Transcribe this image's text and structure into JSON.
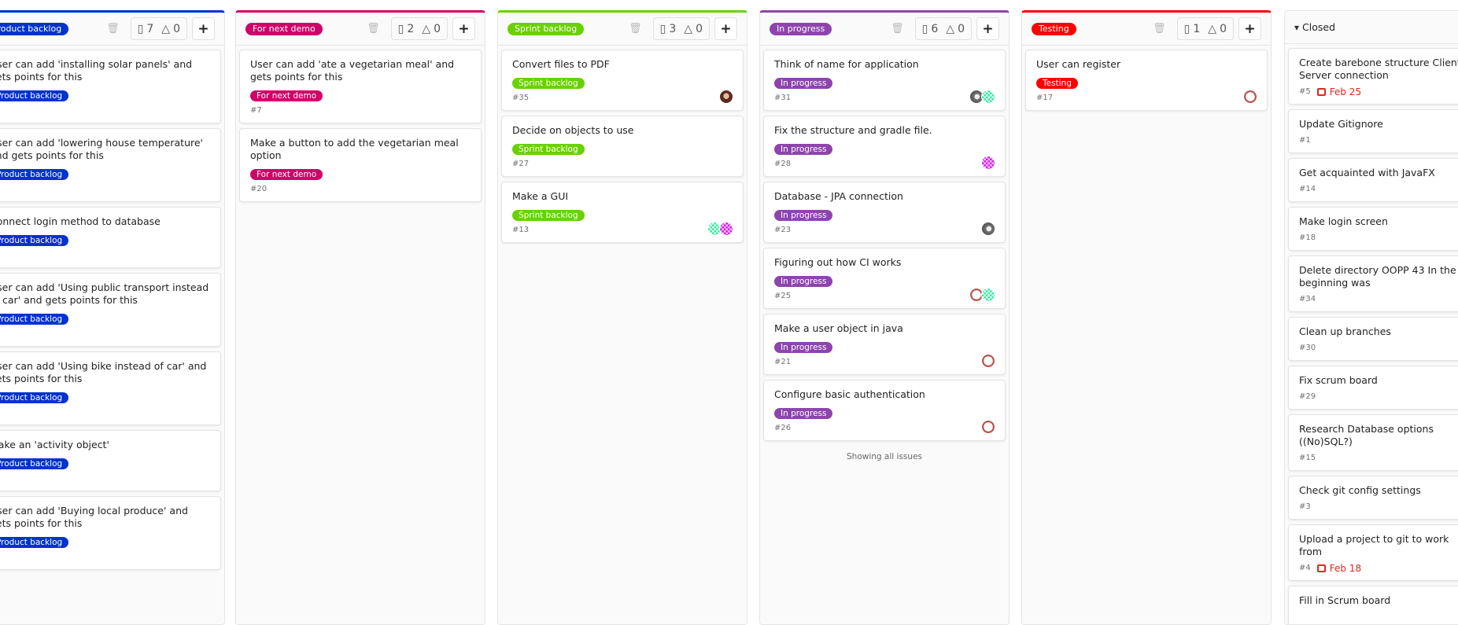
{
  "colors": {
    "product_backlog": "#0033cc",
    "for_next_demo": "#d10069",
    "sprint_backlog": "#69d100",
    "in_progress": "#8e44ad",
    "testing": "#ff0000",
    "due": "#e0271c"
  },
  "lists": [
    {
      "label": "Product backlog",
      "color": "#0033cc",
      "issues": 7,
      "weight": 0,
      "cards": [
        {
          "title": "User can add 'installing solar panels' and gets points for this",
          "tag": "Product backlog"
        },
        {
          "title": "User can add 'lowering house temperature' and gets points for this",
          "tag": "Product backlog"
        },
        {
          "title": "Connect login method to database",
          "tag": "Product backlog"
        },
        {
          "title": "User can add 'Using public transport instead of car' and gets points for this",
          "tag": "Product backlog"
        },
        {
          "title": "User can add 'Using bike instead of car' and gets points for this",
          "tag": "Product backlog"
        },
        {
          "title": "Make an 'activity object'",
          "tag": "Product backlog"
        },
        {
          "title": "User can add 'Buying local produce' and gets points for this",
          "tag": "Product backlog"
        }
      ]
    },
    {
      "label": "For next demo",
      "color": "#d10069",
      "issues": 2,
      "weight": 0,
      "cards": [
        {
          "title": "User can add 'ate a vegetarian meal' and gets points for this",
          "tag": "For next demo",
          "ref": "#7"
        },
        {
          "title": "Make a button to add the vegetarian meal option",
          "tag": "For next demo",
          "ref": "#20"
        }
      ]
    },
    {
      "label": "Sprint backlog",
      "color": "#69d100",
      "issues": 3,
      "weight": 0,
      "cards": [
        {
          "title": "Convert files to PDF",
          "tag": "Sprint backlog",
          "ref": "#35",
          "avatars": [
            "photo-a"
          ]
        },
        {
          "title": "Decide on objects to use",
          "tag": "Sprint backlog",
          "ref": "#27"
        },
        {
          "title": "Make a GUI",
          "tag": "Sprint backlog",
          "ref": "#13",
          "avatars": [
            "green",
            "magenta"
          ]
        }
      ]
    },
    {
      "label": "In progress",
      "color": "#8e44ad",
      "issues": 6,
      "weight": 0,
      "footer": "Showing all issues",
      "cards": [
        {
          "title": "Think of name for application",
          "tag": "In progress",
          "ref": "#31",
          "avatars": [
            "photo-b",
            "green"
          ]
        },
        {
          "title": "Fix the structure and gradle file.",
          "tag": "In progress",
          "ref": "#28",
          "avatars": [
            "magenta"
          ]
        },
        {
          "title": "Database - JPA connection",
          "tag": "In progress",
          "ref": "#23",
          "avatars": [
            "photo-b"
          ]
        },
        {
          "title": "Figuring out how CI works",
          "tag": "In progress",
          "ref": "#25",
          "avatars": [
            "brown",
            "green"
          ]
        },
        {
          "title": "Make a user object in java",
          "tag": "In progress",
          "ref": "#21",
          "avatars": [
            "brown"
          ]
        },
        {
          "title": "Configure basic authentication",
          "tag": "In progress",
          "ref": "#26",
          "avatars": [
            "brown"
          ]
        }
      ]
    },
    {
      "label": "Testing",
      "color": "#ff0000",
      "issues": 1,
      "weight": 0,
      "cards": [
        {
          "title": "User can register",
          "tag": "Testing",
          "ref": "#17",
          "avatars": [
            "brown"
          ]
        }
      ]
    }
  ],
  "closed": {
    "label": "Closed",
    "cards": [
      {
        "title": "Create barebone structure Client-Server connection",
        "ref": "#5",
        "due": "Feb 25"
      },
      {
        "title": "Update Gitignore",
        "ref": "#1"
      },
      {
        "title": "Get acquainted with JavaFX",
        "ref": "#14"
      },
      {
        "title": "Make login screen",
        "ref": "#18"
      },
      {
        "title": "Delete directory OOPP 43 In the beginning was",
        "ref": "#34"
      },
      {
        "title": "Clean up branches",
        "ref": "#30"
      },
      {
        "title": "Fix scrum board",
        "ref": "#29"
      },
      {
        "title": "Research Database options ((No)SQL?)",
        "ref": "#15"
      },
      {
        "title": "Check git config settings",
        "ref": "#3"
      },
      {
        "title": "Upload a project to git to work from",
        "ref": "#4",
        "due": "Feb 18"
      },
      {
        "title": "Fill in Scrum board",
        "ref": ""
      }
    ]
  }
}
